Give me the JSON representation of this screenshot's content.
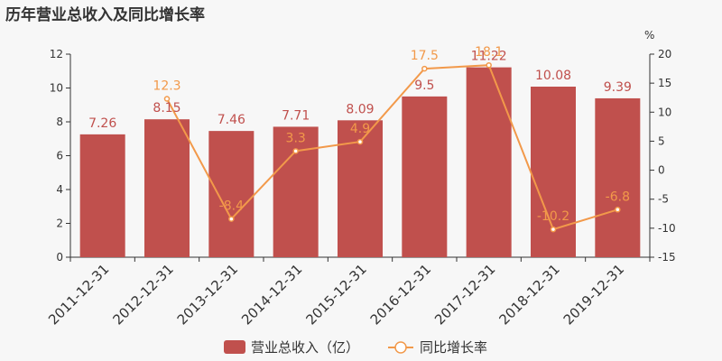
{
  "title": "历年营业总收入及同比增长率",
  "colors": {
    "bar": "#c0504d",
    "line": "#f2994a"
  },
  "chart_data": {
    "type": "bar+line",
    "categories": [
      "2011-12-31",
      "2012-12-31",
      "2013-12-31",
      "2014-12-31",
      "2015-12-31",
      "2016-12-31",
      "2017-12-31",
      "2018-12-31",
      "2019-12-31"
    ],
    "series": [
      {
        "name": "营业总收入（亿）",
        "type": "bar",
        "axis": "left",
        "values": [
          7.26,
          8.15,
          7.46,
          7.71,
          8.09,
          9.5,
          11.22,
          10.08,
          9.39
        ],
        "labels": [
          "7.26",
          "8.15",
          "7.46",
          "7.71",
          "8.09",
          "9.5",
          "11.22",
          "10.08",
          "9.39"
        ]
      },
      {
        "name": "同比增长率",
        "type": "line",
        "axis": "right",
        "values": [
          null,
          12.3,
          -8.4,
          3.3,
          4.9,
          17.5,
          18.1,
          -10.2,
          -6.8
        ],
        "labels": [
          "",
          "12.3",
          "-8.4",
          "3.3",
          "4.9",
          "17.5",
          "18.1",
          "-10.2",
          "-6.8"
        ]
      }
    ],
    "y_left": {
      "min": 0,
      "max": 12,
      "ticks": [
        "0",
        "2",
        "4",
        "6",
        "8",
        "10",
        "12"
      ]
    },
    "y_right": {
      "min": -15,
      "max": 20,
      "unit": "%",
      "ticks": [
        "-15",
        "-10",
        "-5",
        "0",
        "5",
        "10",
        "15",
        "20"
      ]
    },
    "legend_position": "bottom-center"
  }
}
